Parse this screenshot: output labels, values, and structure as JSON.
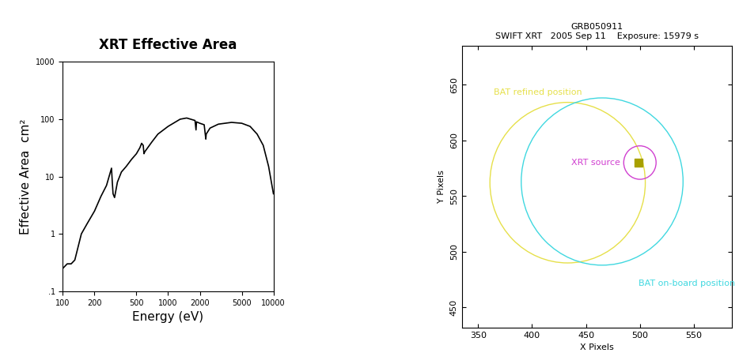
{
  "chart_data": [
    {
      "type": "line",
      "title": "XRT Effective Area",
      "x_label": "Energy (eV)",
      "y_label": "Effective Area  cm²",
      "log": true,
      "color": "#000000",
      "x": [
        100,
        110,
        120,
        130,
        150,
        170,
        200,
        230,
        260,
        283,
        290,
        295,
        300,
        310,
        330,
        360,
        400,
        450,
        500,
        540,
        560,
        580,
        590,
        600,
        700,
        800,
        1000,
        1300,
        1500,
        1800,
        1840,
        1860,
        2000,
        2200,
        2280,
        2300,
        2500,
        3000,
        4000,
        5000,
        6000,
        7000,
        8000,
        9000,
        10000
      ],
      "values": [
        0.25,
        0.3,
        0.3,
        0.35,
        1.0,
        1.5,
        2.5,
        4.5,
        7,
        12,
        14,
        8,
        5,
        4.3,
        8,
        12,
        15,
        20,
        25,
        32,
        38,
        35,
        25,
        27,
        40,
        55,
        75,
        100,
        105,
        95,
        65,
        90,
        85,
        80,
        45,
        55,
        70,
        82,
        88,
        85,
        75,
        55,
        35,
        15,
        5
      ],
      "xlim": [
        100,
        10000
      ],
      "ylim": [
        0.1,
        1000
      ],
      "xticks": [
        100,
        200,
        500,
        1000,
        2000,
        5000,
        10000
      ],
      "yticks": [
        {
          "value": 0.1,
          "label": ".1"
        },
        1,
        10,
        100,
        1000
      ]
    },
    {
      "type": "scatter",
      "title": "GRB050911\nSWIFT XRT   2005 Sep 11    Exposure: 15979 s",
      "x_label": "X Pixels",
      "y_label": "Y Pixels",
      "x": [
        499
      ],
      "values": [
        580
      ],
      "color": "#a8a000",
      "xlim": [
        335,
        585
      ],
      "ylim": [
        432,
        685
      ],
      "xticks": [
        350,
        400,
        450,
        500,
        550
      ],
      "yticks": [
        450,
        500,
        550,
        600,
        650
      ],
      "circles": [
        {
          "name": "BAT refined position",
          "color": "#e6e04a",
          "center": [
            433,
            562
          ],
          "radius": 72
        },
        {
          "name": "BAT on-board position",
          "color": "#40d8e0",
          "center": [
            465,
            563
          ],
          "radius": 75
        },
        {
          "name": "XRT source",
          "color": "#d040d0",
          "center": [
            500,
            580
          ],
          "radius": 15
        }
      ]
    }
  ]
}
